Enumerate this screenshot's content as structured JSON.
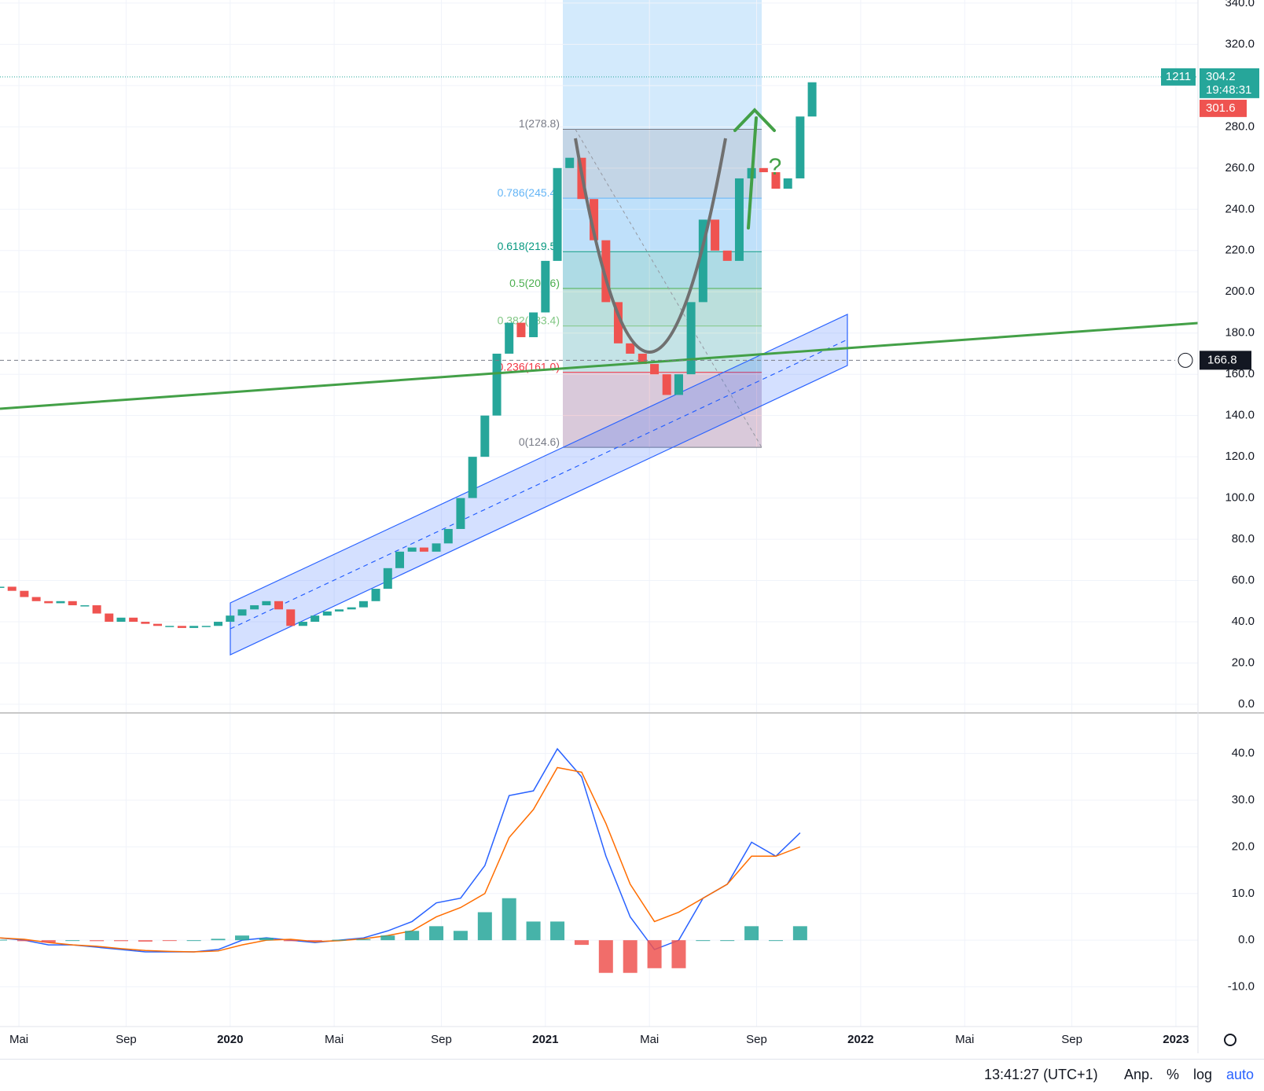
{
  "chart_data": [
    {
      "type": "candlestick",
      "x": [
        2019.27,
        2019.308,
        2019.347,
        2019.385,
        2019.424,
        2019.462,
        2019.5,
        2019.539,
        2019.577,
        2019.616,
        2019.654,
        2019.693,
        2019.731,
        2019.77,
        2019.808,
        2019.847,
        2019.885,
        2019.924,
        2019.962,
        2020.0,
        2020.038,
        2020.077,
        2020.115,
        2020.154,
        2020.192,
        2020.231,
        2020.269,
        2020.308,
        2020.346,
        2020.385,
        2020.423,
        2020.462,
        2020.5,
        2020.538,
        2020.577,
        2020.615,
        2020.654,
        2020.692,
        2020.731,
        2020.769,
        2020.808,
        2020.846,
        2020.885,
        2020.923,
        2020.962,
        2021.0,
        2021.038,
        2021.077,
        2021.115,
        2021.154,
        2021.192,
        2021.231,
        2021.269,
        2021.308,
        2021.346,
        2021.385,
        2021.423,
        2021.462,
        2021.5,
        2021.538,
        2021.577,
        2021.615,
        2021.654,
        2021.692,
        2021.731,
        2021.769,
        2021.808,
        2021.846
      ],
      "series": [
        {
          "name": "Close",
          "values": [
            57,
            55,
            52,
            50,
            49,
            50,
            48,
            48,
            44,
            40,
            42,
            40,
            39,
            38,
            38,
            37,
            38,
            38,
            40,
            43,
            46,
            48,
            50,
            46,
            38,
            40,
            43,
            45,
            46,
            47,
            50,
            56,
            66,
            74,
            76,
            74,
            78,
            85,
            100,
            120,
            140,
            170,
            185,
            178,
            190,
            215,
            260,
            265,
            245,
            225,
            195,
            175,
            170,
            165,
            160,
            150,
            160,
            195,
            235,
            220,
            215,
            255,
            260,
            258,
            250,
            255,
            285,
            301.6
          ]
        }
      ],
      "up_color": "#26a69a",
      "down_color": "#ef5350",
      "xlim": [
        2019.27,
        2023.07
      ],
      "xticks": [
        {
          "value": 2019.33,
          "label": "Mai"
        },
        {
          "value": 2019.67,
          "label": "Sep"
        },
        {
          "value": 2020.0,
          "label": "2020"
        },
        {
          "value": 2020.33,
          "label": "Mai"
        },
        {
          "value": 2020.67,
          "label": "Sep"
        },
        {
          "value": 2021.0,
          "label": "2021"
        },
        {
          "value": 2021.33,
          "label": "Mai"
        },
        {
          "value": 2021.67,
          "label": "Sep"
        },
        {
          "value": 2022.0,
          "label": "2022"
        },
        {
          "value": 2022.33,
          "label": "Mai"
        },
        {
          "value": 2022.67,
          "label": "Sep"
        },
        {
          "value": 2023.0,
          "label": "2023"
        }
      ],
      "ylim": [
        -4.2,
        341.5
      ],
      "yticks": [
        {
          "value": 0,
          "label": "0.0"
        },
        {
          "value": 20,
          "label": "20.0"
        },
        {
          "value": 40,
          "label": "40.0"
        },
        {
          "value": 60,
          "label": "60.0"
        },
        {
          "value": 80,
          "label": "80.0"
        },
        {
          "value": 100,
          "label": "100.0"
        },
        {
          "value": 120,
          "label": "120.0"
        },
        {
          "value": 140,
          "label": "140.0"
        },
        {
          "value": 160,
          "label": "160.0"
        },
        {
          "value": 180,
          "label": "180.0"
        },
        {
          "value": 200,
          "label": "200.0"
        },
        {
          "value": 220,
          "label": "220.0"
        },
        {
          "value": 240,
          "label": "240.0"
        },
        {
          "value": 260,
          "label": "260.0"
        },
        {
          "value": 280,
          "label": "280.0"
        },
        {
          "value": 300,
          "label": "300.0"
        },
        {
          "value": 320,
          "label": "320.0"
        },
        {
          "value": 340,
          "label": "340.0"
        }
      ],
      "grid": true,
      "fib_levels": [
        {
          "value": 278.8,
          "label": "1(278.8)",
          "color": "#787b86"
        },
        {
          "value": 245.4,
          "label": "0.786(245.4)",
          "color": "#64b5f6"
        },
        {
          "value": 219.5,
          "label": "0.618(219.5)",
          "color": "#089981"
        },
        {
          "value": 201.6,
          "label": "0.5(201.6)",
          "color": "#4caf50"
        },
        {
          "value": 183.4,
          "label": "0.382(183.4)",
          "color": "#81c784"
        },
        {
          "value": 161.0,
          "label": "0.236(161.0)",
          "color": "#f23645"
        },
        {
          "value": 124.6,
          "label": "0(124.6)",
          "color": "#787b86"
        }
      ],
      "last_price": {
        "value": 304.2,
        "label": "304.2"
      },
      "volume_tag": "1211",
      "countdown": "19:48:31",
      "prev_price": {
        "value": 301.6,
        "label": "301.6"
      },
      "crosshair": {
        "value": 166.8,
        "label": "166.8"
      },
      "annotation": "?"
    },
    {
      "type": "macd",
      "x": [
        2019.27,
        2019.347,
        2019.424,
        2019.5,
        2019.577,
        2019.654,
        2019.731,
        2019.808,
        2019.885,
        2019.962,
        2020.038,
        2020.115,
        2020.192,
        2020.269,
        2020.346,
        2020.423,
        2020.5,
        2020.577,
        2020.654,
        2020.731,
        2020.808,
        2020.885,
        2020.962,
        2021.038,
        2021.115,
        2021.192,
        2021.269,
        2021.346,
        2021.423,
        2021.5,
        2021.577,
        2021.654,
        2021.731,
        2021.808
      ],
      "series": [
        {
          "name": "MACD",
          "color": "#2962ff",
          "values": [
            0.5,
            0,
            -1,
            -1,
            -1.5,
            -2,
            -2.5,
            -2.5,
            -2.5,
            -2,
            0,
            0.5,
            0,
            -0.5,
            0,
            0.5,
            2,
            4,
            8,
            9,
            16,
            31,
            32,
            41,
            35,
            18,
            5,
            -2,
            0,
            9,
            12,
            21,
            18,
            23
          ]
        },
        {
          "name": "Signal",
          "color": "#ff6d00",
          "values": [
            0.5,
            0.2,
            -0.5,
            -1,
            -1.3,
            -1.8,
            -2.2,
            -2.4,
            -2.5,
            -2.3,
            -1,
            0,
            0.2,
            -0.3,
            -0.1,
            0.3,
            1,
            2,
            5,
            7,
            10,
            22,
            28,
            37,
            36,
            25,
            12,
            4,
            6,
            9,
            12,
            18,
            18,
            20
          ]
        },
        {
          "name": "Histogram",
          "type": "bar",
          "color": "#26a69a",
          "negative_color": "#ef5350",
          "values": [
            0.1,
            -0.2,
            -0.5,
            0,
            -0.2,
            -0.2,
            -0.3,
            -0.1,
            0,
            0.3,
            1,
            0.5,
            -0.2,
            -0.2,
            0.1,
            0.2,
            1,
            2,
            3,
            2,
            6,
            9,
            4,
            4,
            -1,
            -7,
            -7,
            -6,
            -6,
            0,
            0,
            3,
            0,
            3
          ]
        }
      ],
      "xlim": [
        2019.27,
        2023.07
      ],
      "ylim": [
        -18.5,
        48.7
      ],
      "yticks": [
        {
          "value": -10,
          "label": "-10.0"
        },
        {
          "value": 0,
          "label": "0.0"
        },
        {
          "value": 10,
          "label": "10.0"
        },
        {
          "value": 20,
          "label": "20.0"
        },
        {
          "value": 30,
          "label": "30.0"
        },
        {
          "value": 40,
          "label": "40.0"
        }
      ],
      "grid": true
    }
  ],
  "status_bar": {
    "time": "13:41:27 (UTC+1)",
    "adjust": "Anp.",
    "percent": "%",
    "log": "log",
    "auto": "auto"
  }
}
